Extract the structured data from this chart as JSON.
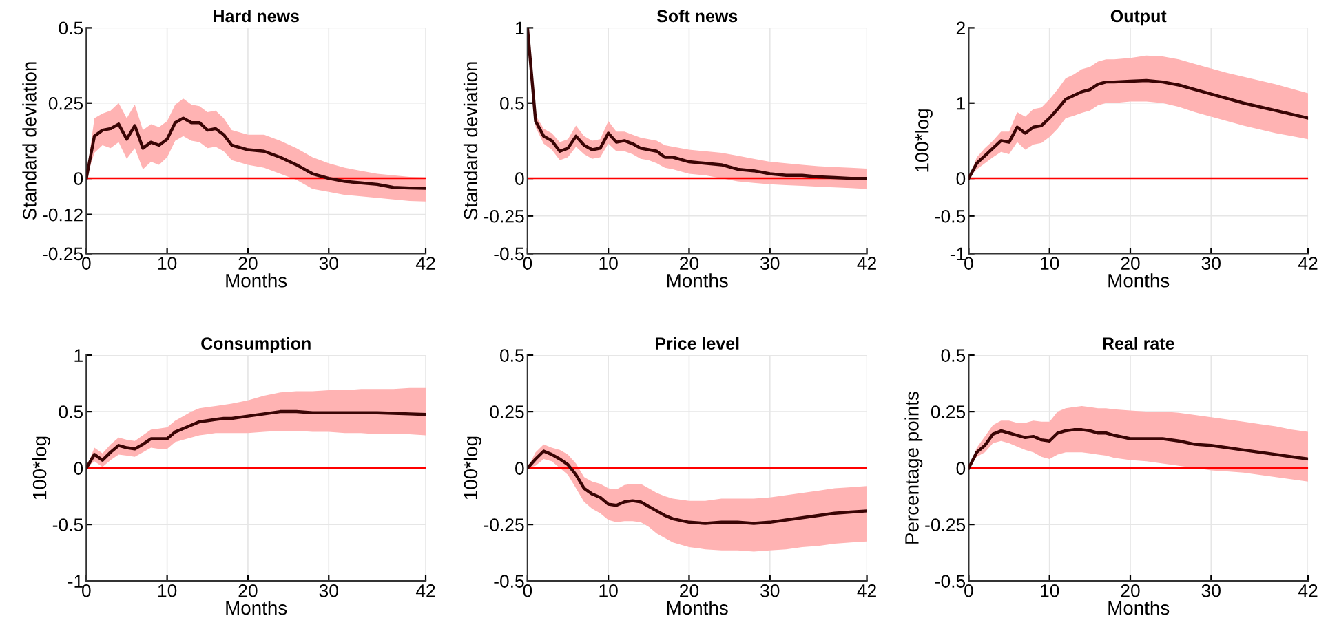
{
  "chart_data": [
    {
      "type": "line",
      "title": "Hard news",
      "xlabel": "Months",
      "ylabel": "Standard deviation",
      "x": [
        0,
        1,
        2,
        3,
        4,
        5,
        6,
        7,
        8,
        9,
        10,
        11,
        12,
        13,
        14,
        15,
        16,
        17,
        18,
        20,
        22,
        24,
        26,
        28,
        30,
        32,
        34,
        36,
        38,
        40,
        42
      ],
      "xlim": [
        0,
        42
      ],
      "xticks": [
        0,
        10,
        20,
        30,
        42
      ],
      "ylim": [
        -0.25,
        0.5
      ],
      "yticks": [
        -0.25,
        -0.12,
        0,
        0.25,
        0.5
      ],
      "grid": true,
      "ref_lines": [
        {
          "axis": "y",
          "value": 0,
          "color": "#ff0000"
        }
      ],
      "series": [
        {
          "color": "#3a0505",
          "values": [
            0,
            0.14,
            0.16,
            0.165,
            0.18,
            0.13,
            0.175,
            0.1,
            0.12,
            0.11,
            0.13,
            0.185,
            0.2,
            0.185,
            0.185,
            0.16,
            0.165,
            0.145,
            0.11,
            0.095,
            0.09,
            0.07,
            0.045,
            0.015,
            0.0,
            -0.01,
            -0.015,
            -0.02,
            -0.03,
            -0.032,
            -0.033
          ],
          "upper": [
            0,
            0.2,
            0.215,
            0.225,
            0.25,
            0.2,
            0.245,
            0.16,
            0.18,
            0.17,
            0.19,
            0.245,
            0.265,
            0.245,
            0.24,
            0.22,
            0.225,
            0.2,
            0.16,
            0.145,
            0.145,
            0.125,
            0.1,
            0.07,
            0.05,
            0.035,
            0.025,
            0.015,
            0.01,
            0.005,
            0.003
          ],
          "lower": [
            0,
            0.085,
            0.11,
            0.1,
            0.12,
            0.065,
            0.1,
            0.03,
            0.055,
            0.045,
            0.07,
            0.125,
            0.14,
            0.125,
            0.12,
            0.1,
            0.105,
            0.09,
            0.06,
            0.045,
            0.035,
            0.015,
            -0.005,
            -0.035,
            -0.045,
            -0.055,
            -0.06,
            -0.065,
            -0.07,
            -0.075,
            -0.077
          ]
        }
      ]
    },
    {
      "type": "line",
      "title": "Soft news",
      "xlabel": "Months",
      "ylabel": "Standard deviation",
      "x": [
        0,
        1,
        2,
        3,
        4,
        5,
        6,
        7,
        8,
        9,
        10,
        11,
        12,
        13,
        14,
        15,
        16,
        17,
        18,
        20,
        22,
        24,
        26,
        28,
        30,
        32,
        34,
        36,
        38,
        40,
        42
      ],
      "xlim": [
        0,
        42
      ],
      "xticks": [
        0,
        10,
        20,
        30,
        42
      ],
      "ylim": [
        -0.5,
        1
      ],
      "yticks": [
        -0.5,
        -0.25,
        0,
        0.5,
        1
      ],
      "grid": true,
      "ref_lines": [
        {
          "axis": "y",
          "value": 0,
          "color": "#ff0000"
        }
      ],
      "series": [
        {
          "color": "#3a0505",
          "values": [
            1,
            0.38,
            0.28,
            0.25,
            0.18,
            0.2,
            0.28,
            0.22,
            0.19,
            0.2,
            0.3,
            0.24,
            0.25,
            0.23,
            0.2,
            0.19,
            0.18,
            0.14,
            0.14,
            0.11,
            0.1,
            0.09,
            0.06,
            0.05,
            0.03,
            0.02,
            0.02,
            0.01,
            0.005,
            0.0,
            0.0
          ],
          "upper": [
            1,
            0.42,
            0.33,
            0.3,
            0.24,
            0.26,
            0.35,
            0.28,
            0.25,
            0.26,
            0.38,
            0.31,
            0.31,
            0.29,
            0.27,
            0.26,
            0.25,
            0.22,
            0.21,
            0.19,
            0.18,
            0.17,
            0.15,
            0.13,
            0.11,
            0.1,
            0.09,
            0.08,
            0.075,
            0.07,
            0.065
          ],
          "lower": [
            1,
            0.34,
            0.23,
            0.19,
            0.12,
            0.14,
            0.21,
            0.16,
            0.13,
            0.14,
            0.23,
            0.18,
            0.18,
            0.16,
            0.13,
            0.12,
            0.1,
            0.07,
            0.06,
            0.03,
            0.02,
            0.0,
            -0.02,
            -0.03,
            -0.04,
            -0.045,
            -0.05,
            -0.055,
            -0.06,
            -0.065,
            -0.07
          ]
        }
      ]
    },
    {
      "type": "line",
      "title": "Output",
      "xlabel": "Months",
      "ylabel": "100*log",
      "x": [
        0,
        1,
        2,
        3,
        4,
        5,
        6,
        7,
        8,
        9,
        10,
        11,
        12,
        13,
        14,
        15,
        16,
        17,
        18,
        20,
        22,
        24,
        26,
        28,
        30,
        32,
        34,
        36,
        38,
        40,
        42
      ],
      "xlim": [
        0,
        42
      ],
      "xticks": [
        0,
        10,
        20,
        30,
        42
      ],
      "ylim": [
        -1,
        2
      ],
      "yticks": [
        -1,
        -0.5,
        0,
        1,
        2
      ],
      "grid": true,
      "ref_lines": [
        {
          "axis": "y",
          "value": 0,
          "color": "#ff0000"
        }
      ],
      "series": [
        {
          "color": "#3a0505",
          "values": [
            0,
            0.2,
            0.3,
            0.4,
            0.5,
            0.48,
            0.68,
            0.6,
            0.68,
            0.7,
            0.8,
            0.92,
            1.05,
            1.1,
            1.15,
            1.18,
            1.25,
            1.28,
            1.28,
            1.29,
            1.3,
            1.28,
            1.24,
            1.18,
            1.12,
            1.06,
            1.0,
            0.95,
            0.9,
            0.85,
            0.8
          ],
          "upper": [
            0,
            0.28,
            0.4,
            0.5,
            0.62,
            0.62,
            0.88,
            0.82,
            0.92,
            0.94,
            1.05,
            1.18,
            1.33,
            1.38,
            1.45,
            1.48,
            1.55,
            1.58,
            1.58,
            1.6,
            1.63,
            1.62,
            1.58,
            1.52,
            1.46,
            1.4,
            1.35,
            1.3,
            1.25,
            1.19,
            1.13
          ],
          "lower": [
            0,
            0.12,
            0.2,
            0.28,
            0.35,
            0.32,
            0.48,
            0.38,
            0.45,
            0.47,
            0.55,
            0.66,
            0.8,
            0.83,
            0.87,
            0.9,
            0.97,
            1.0,
            1.0,
            1.02,
            1.02,
            1.0,
            0.95,
            0.88,
            0.82,
            0.76,
            0.7,
            0.65,
            0.6,
            0.56,
            0.52
          ]
        }
      ]
    },
    {
      "type": "line",
      "title": "Consumption",
      "xlabel": "Months",
      "ylabel": "100*log",
      "x": [
        0,
        1,
        2,
        3,
        4,
        5,
        6,
        7,
        8,
        9,
        10,
        11,
        12,
        13,
        14,
        15,
        16,
        17,
        18,
        20,
        22,
        24,
        26,
        28,
        30,
        32,
        34,
        36,
        38,
        40,
        42
      ],
      "xlim": [
        0,
        42
      ],
      "xticks": [
        0,
        10,
        20,
        30,
        42
      ],
      "ylim": [
        -1,
        1
      ],
      "yticks": [
        -1,
        -0.5,
        0,
        0.5,
        1
      ],
      "grid": true,
      "ref_lines": [
        {
          "axis": "y",
          "value": 0,
          "color": "#ff0000"
        }
      ],
      "series": [
        {
          "color": "#3a0505",
          "values": [
            0,
            0.12,
            0.07,
            0.14,
            0.2,
            0.18,
            0.17,
            0.21,
            0.26,
            0.26,
            0.26,
            0.32,
            0.35,
            0.38,
            0.41,
            0.42,
            0.43,
            0.44,
            0.44,
            0.46,
            0.48,
            0.5,
            0.5,
            0.49,
            0.49,
            0.49,
            0.49,
            0.49,
            0.485,
            0.48,
            0.475
          ],
          "upper": [
            0,
            0.18,
            0.13,
            0.21,
            0.27,
            0.25,
            0.24,
            0.29,
            0.34,
            0.35,
            0.36,
            0.42,
            0.46,
            0.5,
            0.53,
            0.54,
            0.55,
            0.56,
            0.57,
            0.6,
            0.64,
            0.67,
            0.68,
            0.68,
            0.69,
            0.69,
            0.7,
            0.7,
            0.7,
            0.71,
            0.71
          ],
          "lower": [
            0,
            0.06,
            0.01,
            0.07,
            0.12,
            0.11,
            0.1,
            0.14,
            0.18,
            0.17,
            0.17,
            0.23,
            0.25,
            0.27,
            0.29,
            0.3,
            0.31,
            0.31,
            0.31,
            0.31,
            0.32,
            0.33,
            0.33,
            0.32,
            0.32,
            0.31,
            0.31,
            0.3,
            0.3,
            0.3,
            0.29
          ]
        }
      ]
    },
    {
      "type": "line",
      "title": "Price level",
      "xlabel": "Months",
      "ylabel": "100*log",
      "x": [
        0,
        1,
        2,
        3,
        4,
        5,
        6,
        7,
        8,
        9,
        10,
        11,
        12,
        13,
        14,
        15,
        16,
        17,
        18,
        20,
        22,
        24,
        26,
        28,
        30,
        32,
        34,
        36,
        38,
        40,
        42
      ],
      "xlim": [
        0,
        42
      ],
      "xticks": [
        0,
        10,
        20,
        30,
        42
      ],
      "ylim": [
        -0.5,
        0.5
      ],
      "yticks": [
        -0.5,
        -0.25,
        0,
        0.25,
        0.5
      ],
      "grid": true,
      "ref_lines": [
        {
          "axis": "y",
          "value": 0,
          "color": "#ff0000"
        }
      ],
      "series": [
        {
          "color": "#3a0505",
          "values": [
            0,
            0.04,
            0.075,
            0.06,
            0.04,
            0.015,
            -0.03,
            -0.09,
            -0.115,
            -0.13,
            -0.16,
            -0.165,
            -0.15,
            -0.145,
            -0.15,
            -0.17,
            -0.19,
            -0.21,
            -0.225,
            -0.24,
            -0.245,
            -0.24,
            -0.24,
            -0.245,
            -0.24,
            -0.23,
            -0.22,
            -0.21,
            -0.2,
            -0.195,
            -0.19
          ],
          "upper": [
            0,
            0.07,
            0.105,
            0.09,
            0.08,
            0.06,
            0.02,
            -0.04,
            -0.06,
            -0.07,
            -0.09,
            -0.095,
            -0.075,
            -0.07,
            -0.07,
            -0.09,
            -0.11,
            -0.125,
            -0.135,
            -0.145,
            -0.145,
            -0.135,
            -0.135,
            -0.135,
            -0.13,
            -0.12,
            -0.11,
            -0.1,
            -0.09,
            -0.085,
            -0.08
          ],
          "lower": [
            0,
            0.01,
            0.04,
            0.03,
            0.0,
            -0.03,
            -0.09,
            -0.15,
            -0.18,
            -0.2,
            -0.23,
            -0.24,
            -0.235,
            -0.235,
            -0.24,
            -0.26,
            -0.29,
            -0.31,
            -0.33,
            -0.35,
            -0.36,
            -0.365,
            -0.365,
            -0.37,
            -0.365,
            -0.36,
            -0.35,
            -0.345,
            -0.335,
            -0.33,
            -0.325
          ]
        }
      ]
    },
    {
      "type": "line",
      "title": "Real rate",
      "xlabel": "Months",
      "ylabel": "Percentage points",
      "x": [
        0,
        1,
        2,
        3,
        4,
        5,
        6,
        7,
        8,
        9,
        10,
        11,
        12,
        13,
        14,
        15,
        16,
        17,
        18,
        20,
        22,
        24,
        26,
        28,
        30,
        32,
        34,
        36,
        38,
        40,
        42
      ],
      "xlim": [
        0,
        42
      ],
      "xticks": [
        0,
        10,
        20,
        30,
        42
      ],
      "ylim": [
        -0.5,
        0.5
      ],
      "yticks": [
        -0.5,
        -0.25,
        0,
        0.25,
        0.5
      ],
      "grid": true,
      "ref_lines": [
        {
          "axis": "y",
          "value": 0,
          "color": "#ff0000"
        }
      ],
      "series": [
        {
          "color": "#3a0505",
          "values": [
            0,
            0.07,
            0.1,
            0.15,
            0.165,
            0.155,
            0.145,
            0.135,
            0.14,
            0.125,
            0.12,
            0.155,
            0.165,
            0.17,
            0.17,
            0.165,
            0.155,
            0.155,
            0.145,
            0.13,
            0.13,
            0.13,
            0.12,
            0.105,
            0.1,
            0.09,
            0.08,
            0.07,
            0.06,
            0.05,
            0.04
          ],
          "upper": [
            0,
            0.09,
            0.14,
            0.19,
            0.21,
            0.21,
            0.2,
            0.2,
            0.21,
            0.205,
            0.205,
            0.25,
            0.265,
            0.27,
            0.275,
            0.27,
            0.265,
            0.265,
            0.26,
            0.255,
            0.25,
            0.25,
            0.245,
            0.235,
            0.225,
            0.215,
            0.205,
            0.195,
            0.185,
            0.17,
            0.16
          ],
          "lower": [
            0,
            0.05,
            0.07,
            0.11,
            0.12,
            0.11,
            0.095,
            0.08,
            0.07,
            0.05,
            0.04,
            0.06,
            0.07,
            0.07,
            0.07,
            0.065,
            0.06,
            0.055,
            0.045,
            0.035,
            0.03,
            0.02,
            0.01,
            0.0,
            -0.01,
            -0.015,
            -0.02,
            -0.03,
            -0.04,
            -0.05,
            -0.06
          ]
        }
      ]
    }
  ]
}
